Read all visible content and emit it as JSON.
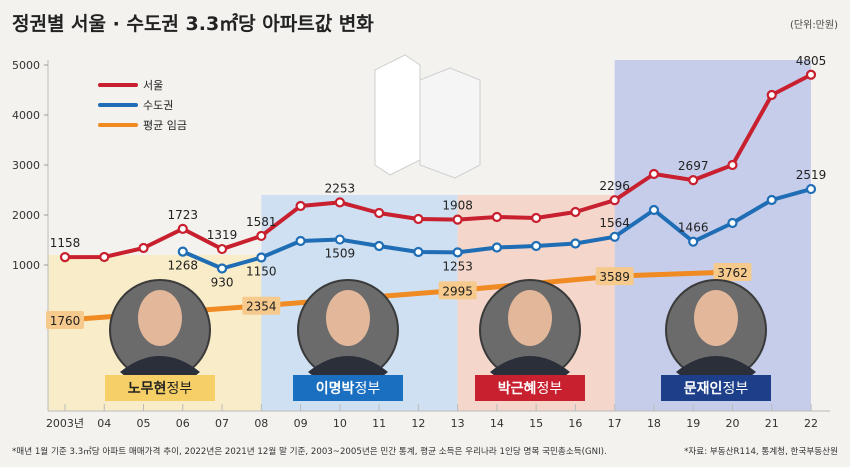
{
  "title": "정권별 서울 · 수도권 3.3㎡당 아파트값 변화",
  "unit": "(단위:만원)",
  "footnote_left": "*매년 1월 기준 3.3㎡당 아파트 매매가격 추이, 2022년은 2021년 12월 말 기준, 2003~2005년은 민간 통계, 평균 소득은 우리나라 1인당 명목 국민총소득(GNI).",
  "footnote_right": "*자료: 부동산R114, 통계청, 한국부동산원",
  "chart_data": {
    "type": "line",
    "title": "정권별 서울 · 수도권 3.3㎡당 아파트값 변화",
    "ylabel": "만원",
    "ylim": [
      0,
      5000
    ],
    "yticks": [
      "1000",
      "2000",
      "3000",
      "4000",
      "5000"
    ],
    "categories": [
      "2003년",
      "04",
      "05",
      "06",
      "07",
      "08",
      "09",
      "10",
      "11",
      "12",
      "13",
      "14",
      "15",
      "16",
      "17",
      "18",
      "19",
      "20",
      "21",
      "22"
    ],
    "x": [
      2003,
      2004,
      2005,
      2006,
      2007,
      2008,
      2009,
      2010,
      2011,
      2012,
      2013,
      2014,
      2015,
      2016,
      2017,
      2018,
      2019,
      2020,
      2021,
      2022
    ],
    "legend": [
      "서울",
      "수도권",
      "평균 임금"
    ],
    "legend_placement": "top-left",
    "series": [
      {
        "name": "서울",
        "color": "#c8202f",
        "values": [
          1158,
          1160,
          1340,
          1723,
          1319,
          1581,
          2180,
          2253,
          2040,
          1920,
          1908,
          1960,
          1940,
          2060,
          2296,
          2820,
          2697,
          3000,
          4400,
          4805
        ],
        "labels": {
          "2003": "1158",
          "2006": "1723",
          "2007": "1319",
          "2008": "1581",
          "2010": "2253",
          "2013": "1908",
          "2017": "2296",
          "2019": "2697",
          "2022": "4805"
        }
      },
      {
        "name": "수도권",
        "color": "#1f6db5",
        "values": [
          null,
          null,
          null,
          1268,
          930,
          1150,
          1480,
          1509,
          1380,
          1260,
          1253,
          1350,
          1380,
          1430,
          1564,
          2100,
          1466,
          1840,
          2300,
          2519
        ],
        "labels": {
          "2006": "1268",
          "2007": "930",
          "2008": "1150",
          "2010": "1509",
          "2013": "1253",
          "2017": "1564",
          "2019": "1466",
          "2022": "2519"
        }
      },
      {
        "name": "평균 임금",
        "color": "#ef8b22",
        "values": [
          1760,
          null,
          null,
          null,
          null,
          2354,
          null,
          null,
          null,
          null,
          2995,
          null,
          null,
          null,
          3589,
          null,
          null,
          3762,
          null,
          null
        ],
        "labels": {
          "2003": "1760",
          "2008": "2354",
          "2013": "2995",
          "2017": "3589",
          "2020": "3762"
        }
      }
    ],
    "eras": [
      {
        "name": "노무현",
        "suffix": "정부",
        "from": 2003,
        "to": 2008,
        "band": "#f8edc8",
        "box": "#f6d066",
        "text": "#222222"
      },
      {
        "name": "이명박",
        "suffix": "정부",
        "from": 2008,
        "to": 2013,
        "band": "#cfe0f2",
        "box": "#1a6fc1",
        "text": "#ffffff"
      },
      {
        "name": "박근혜",
        "suffix": "정부",
        "from": 2013,
        "to": 2017,
        "band": "#f4d6cb",
        "box": "#c8202f",
        "text": "#ffffff"
      },
      {
        "name": "문재인",
        "suffix": "정부",
        "from": 2017,
        "to": 2022,
        "band": "#c6cdeb",
        "box": "#1d3f8a",
        "text": "#ffffff"
      }
    ]
  }
}
